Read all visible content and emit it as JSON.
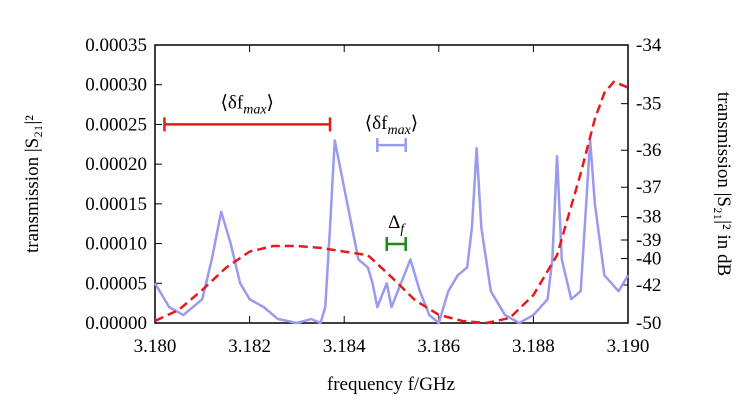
{
  "chart_data": {
    "type": "line",
    "xlabel": "frequency f/GHz",
    "ylabel": "transmission |S₂₁|²",
    "y2label": "transmission |S₂₁|² in dB",
    "xlim": [
      3.18,
      3.19
    ],
    "xticks": [
      {
        "value": 3.18,
        "label": "3.180"
      },
      {
        "value": 3.182,
        "label": "3.182"
      },
      {
        "value": 3.184,
        "label": "3.184"
      },
      {
        "value": 3.186,
        "label": "3.186"
      },
      {
        "value": 3.188,
        "label": "3.188"
      },
      {
        "value": 3.19,
        "label": "3.190"
      }
    ],
    "ylim": [
      0,
      0.00035
    ],
    "yticks": [
      {
        "value": 0,
        "label": "0.00000"
      },
      {
        "value": 5e-05,
        "label": "0.00005"
      },
      {
        "value": 0.0001,
        "label": "0.00010"
      },
      {
        "value": 0.00015,
        "label": "0.00015"
      },
      {
        "value": 0.0002,
        "label": "0.00020"
      },
      {
        "value": 0.00025,
        "label": "0.00025"
      },
      {
        "value": 0.0003,
        "label": "0.00030"
      },
      {
        "value": 0.00035,
        "label": "0.00035"
      }
    ],
    "y2scale": "power",
    "y2lim": [
      -50,
      -34
    ],
    "y2ticks": [
      -34,
      -35,
      -36,
      -37,
      -38,
      -39,
      -40,
      -42,
      -50
    ],
    "series": [
      {
        "color": "#9a9aee",
        "dash": false,
        "x": [
          3.18,
          3.1803,
          3.1806,
          3.181,
          3.1812,
          3.1814,
          3.1816,
          3.1818,
          3.182,
          3.1823,
          3.1826,
          3.183,
          3.1833,
          3.1835,
          3.1836,
          3.1837,
          3.1838,
          3.1839,
          3.1841,
          3.1843,
          3.1845,
          3.1846,
          3.1847,
          3.1849,
          3.185,
          3.1852,
          3.1854,
          3.1856,
          3.1858,
          3.186,
          3.1862,
          3.1864,
          3.1866,
          3.1867,
          3.1868,
          3.1869,
          3.1871,
          3.1874,
          3.1877,
          3.188,
          3.1883,
          3.1884,
          3.1885,
          3.1886,
          3.1888,
          3.189,
          3.1892,
          3.1893,
          3.1895,
          3.1898,
          3.19
        ],
        "values": [
          5e-05,
          2e-05,
          1e-05,
          3e-05,
          8e-05,
          0.00014,
          0.0001,
          5e-05,
          3e-05,
          2e-05,
          5e-06,
          0,
          5e-06,
          0,
          2e-05,
          0.00012,
          0.00023,
          0.0002,
          0.00014,
          8e-05,
          7e-05,
          5e-05,
          2e-05,
          5e-05,
          2e-05,
          5e-05,
          8e-05,
          4e-05,
          1e-05,
          0,
          4e-05,
          6e-05,
          7e-05,
          0.00012,
          0.00022,
          0.00012,
          4e-05,
          1e-05,
          0,
          1e-05,
          3e-05,
          8e-05,
          0.00021,
          8e-05,
          3e-05,
          4e-05,
          0.00023,
          0.00015,
          6e-05,
          4e-05,
          6e-05
        ]
      },
      {
        "color": "#e41a1c",
        "dash": true,
        "axis": "y2",
        "x": [
          3.18,
          3.1805,
          3.181,
          3.1815,
          3.182,
          3.1825,
          3.183,
          3.1835,
          3.184,
          3.1845,
          3.185,
          3.1855,
          3.186,
          3.1865,
          3.187,
          3.1875,
          3.188,
          3.1885,
          3.189,
          3.1893,
          3.1895,
          3.1897,
          3.19
        ],
        "values": [
          -48.9,
          -45.5,
          -42.5,
          -40.6,
          -39.6,
          -39.3,
          -39.3,
          -39.4,
          -39.6,
          -39.8,
          -41.3,
          -43.8,
          -46.7,
          -48.9,
          -50,
          -47.7,
          -43.1,
          -39.8,
          -36.6,
          -35.3,
          -34.8,
          -34.6,
          -34.7
        ]
      }
    ],
    "annotations": [
      {
        "label": {
          "main": "⟨δf",
          "sub": "max",
          "end": "⟩"
        },
        "x": [
          3.1802,
          3.1837
        ],
        "y": 0.00025,
        "color": "#e41a1c"
      },
      {
        "label": {
          "main": "⟨δf",
          "sub": "max",
          "end": "⟩"
        },
        "x": [
          3.1847,
          3.1853
        ],
        "y": 0.000224,
        "color": "#9a9aee"
      },
      {
        "label": {
          "main": "Δ",
          "sub": "f"
        },
        "x": [
          3.1849,
          3.1853
        ],
        "y": 9.95e-05,
        "color": "#1a8a1a"
      }
    ]
  }
}
